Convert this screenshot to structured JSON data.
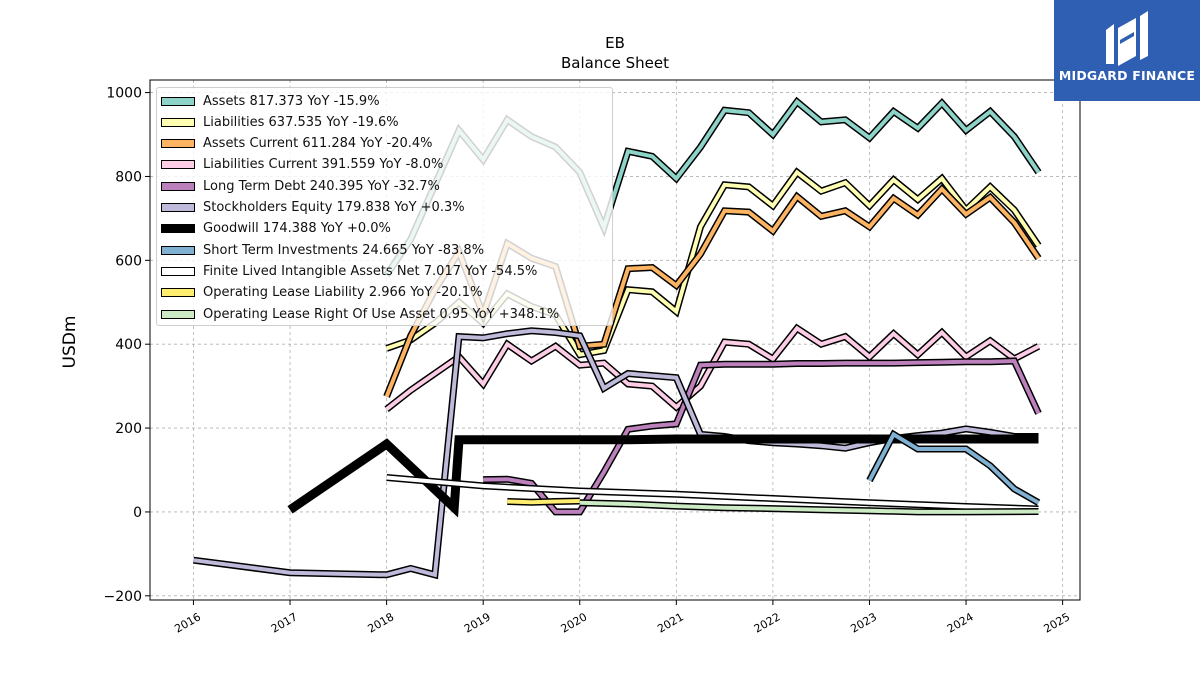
{
  "logo": {
    "text": "MIDGARD FINANCE",
    "background": "#2f5fb3"
  },
  "chart_data": {
    "type": "line",
    "title": "EB",
    "subtitle": "Balance  Sheet",
    "xlabel": "",
    "ylabel": "USDm",
    "xlim": [
      2015.55,
      2025.18
    ],
    "ylim": [
      -210,
      1030
    ],
    "x_ticks": [
      "2016",
      "2017",
      "2018",
      "2019",
      "2020",
      "2021",
      "2022",
      "2023",
      "2024",
      "2025"
    ],
    "y_ticks": [
      "−200",
      "0",
      "200",
      "400",
      "600",
      "800",
      "1000"
    ],
    "grid": true,
    "legend_position": "top-left",
    "series": [
      {
        "name": "Assets  817.373 YoY -15.9%",
        "color": "#8dd3c7",
        "points": [
          [
            2018.0,
            565
          ],
          [
            2018.25,
            650
          ],
          [
            2018.5,
            780
          ],
          [
            2018.75,
            910
          ],
          [
            2019.0,
            840
          ],
          [
            2019.25,
            935
          ],
          [
            2019.5,
            895
          ],
          [
            2019.75,
            870
          ],
          [
            2020.0,
            810
          ],
          [
            2020.25,
            678
          ],
          [
            2020.5,
            860
          ],
          [
            2020.75,
            848
          ],
          [
            2021.0,
            795
          ],
          [
            2021.25,
            870
          ],
          [
            2021.5,
            958
          ],
          [
            2021.75,
            952
          ],
          [
            2022.0,
            900
          ],
          [
            2022.25,
            978
          ],
          [
            2022.5,
            930
          ],
          [
            2022.75,
            935
          ],
          [
            2023.0,
            892
          ],
          [
            2023.25,
            955
          ],
          [
            2023.5,
            915
          ],
          [
            2023.75,
            975
          ],
          [
            2024.0,
            910
          ],
          [
            2024.25,
            955
          ],
          [
            2024.5,
            895
          ],
          [
            2024.75,
            810
          ]
        ]
      },
      {
        "name": "Liabilities  637.535 YoY -19.6%",
        "color": "#ffffb3",
        "points": [
          [
            2018.0,
            390
          ],
          [
            2018.25,
            410
          ],
          [
            2018.5,
            450
          ],
          [
            2018.75,
            500
          ],
          [
            2019.0,
            450
          ],
          [
            2019.25,
            520
          ],
          [
            2019.5,
            490
          ],
          [
            2019.75,
            470
          ],
          [
            2020.0,
            375
          ],
          [
            2020.25,
            385
          ],
          [
            2020.5,
            530
          ],
          [
            2020.75,
            525
          ],
          [
            2021.0,
            478
          ],
          [
            2021.25,
            680
          ],
          [
            2021.5,
            780
          ],
          [
            2021.75,
            775
          ],
          [
            2022.0,
            730
          ],
          [
            2022.25,
            810
          ],
          [
            2022.5,
            765
          ],
          [
            2022.75,
            785
          ],
          [
            2023.0,
            730
          ],
          [
            2023.25,
            792
          ],
          [
            2023.5,
            745
          ],
          [
            2023.75,
            795
          ],
          [
            2024.0,
            720
          ],
          [
            2024.25,
            775
          ],
          [
            2024.5,
            720
          ],
          [
            2024.75,
            635
          ]
        ]
      },
      {
        "name": "Assets Current  611.284 YoY -20.4%",
        "color": "#fdb462",
        "points": [
          [
            2018.0,
            275
          ],
          [
            2018.25,
            420
          ],
          [
            2018.5,
            530
          ],
          [
            2018.75,
            620
          ],
          [
            2019.0,
            470
          ],
          [
            2019.25,
            640
          ],
          [
            2019.5,
            605
          ],
          [
            2019.75,
            585
          ],
          [
            2020.0,
            395
          ],
          [
            2020.25,
            400
          ],
          [
            2020.5,
            580
          ],
          [
            2020.75,
            583
          ],
          [
            2021.0,
            540
          ],
          [
            2021.25,
            615
          ],
          [
            2021.5,
            718
          ],
          [
            2021.75,
            715
          ],
          [
            2022.0,
            670
          ],
          [
            2022.25,
            752
          ],
          [
            2022.5,
            705
          ],
          [
            2022.75,
            718
          ],
          [
            2023.0,
            680
          ],
          [
            2023.25,
            748
          ],
          [
            2023.5,
            708
          ],
          [
            2023.75,
            770
          ],
          [
            2024.0,
            710
          ],
          [
            2024.25,
            750
          ],
          [
            2024.5,
            690
          ],
          [
            2024.75,
            605
          ]
        ]
      },
      {
        "name": "Liabilities Current  391.559 YoY -8.0%",
        "color": "#fccde5",
        "points": [
          [
            2018.0,
            245
          ],
          [
            2018.25,
            290
          ],
          [
            2018.5,
            330
          ],
          [
            2018.75,
            370
          ],
          [
            2019.0,
            305
          ],
          [
            2019.25,
            400
          ],
          [
            2019.5,
            360
          ],
          [
            2019.75,
            395
          ],
          [
            2020.0,
            350
          ],
          [
            2020.25,
            355
          ],
          [
            2020.5,
            305
          ],
          [
            2020.75,
            300
          ],
          [
            2021.0,
            250
          ],
          [
            2021.25,
            300
          ],
          [
            2021.5,
            405
          ],
          [
            2021.75,
            400
          ],
          [
            2022.0,
            365
          ],
          [
            2022.25,
            438
          ],
          [
            2022.5,
            400
          ],
          [
            2022.75,
            418
          ],
          [
            2023.0,
            370
          ],
          [
            2023.25,
            425
          ],
          [
            2023.5,
            375
          ],
          [
            2023.75,
            428
          ],
          [
            2024.0,
            370
          ],
          [
            2024.25,
            408
          ],
          [
            2024.5,
            365
          ],
          [
            2024.75,
            395
          ]
        ]
      },
      {
        "name": "Long Term Debt  240.395 YoY -32.7%",
        "color": "#bc80bd",
        "points": [
          [
            2019.0,
            77
          ],
          [
            2019.25,
            78
          ],
          [
            2019.5,
            68
          ],
          [
            2019.75,
            0
          ],
          [
            2020.0,
            0
          ],
          [
            2020.25,
            95
          ],
          [
            2020.5,
            197
          ],
          [
            2020.75,
            205
          ],
          [
            2021.0,
            210
          ],
          [
            2021.25,
            350
          ],
          [
            2021.5,
            352
          ],
          [
            2021.75,
            352
          ],
          [
            2022.0,
            352
          ],
          [
            2022.25,
            354
          ],
          [
            2022.5,
            354
          ],
          [
            2022.75,
            355
          ],
          [
            2023.0,
            355
          ],
          [
            2023.25,
            355
          ],
          [
            2023.5,
            356
          ],
          [
            2023.75,
            357
          ],
          [
            2024.0,
            358
          ],
          [
            2024.25,
            358
          ],
          [
            2024.5,
            360
          ],
          [
            2024.75,
            235
          ]
        ]
      },
      {
        "name": "Stockholders Equity  179.838 YoY +0.3%",
        "color": "#bebada",
        "points": [
          [
            2016.0,
            -115
          ],
          [
            2017.0,
            -145
          ],
          [
            2018.0,
            -150
          ],
          [
            2018.25,
            -135
          ],
          [
            2018.5,
            -150
          ],
          [
            2018.75,
            418
          ],
          [
            2019.0,
            415
          ],
          [
            2019.25,
            425
          ],
          [
            2019.5,
            432
          ],
          [
            2019.75,
            428
          ],
          [
            2020.0,
            420
          ],
          [
            2020.25,
            295
          ],
          [
            2020.5,
            330
          ],
          [
            2020.75,
            325
          ],
          [
            2021.0,
            320
          ],
          [
            2021.25,
            185
          ],
          [
            2021.5,
            180
          ],
          [
            2021.75,
            170
          ],
          [
            2022.0,
            165
          ],
          [
            2022.25,
            162
          ],
          [
            2022.5,
            158
          ],
          [
            2022.75,
            152
          ],
          [
            2023.0,
            165
          ],
          [
            2023.25,
            175
          ],
          [
            2023.5,
            182
          ],
          [
            2023.75,
            188
          ],
          [
            2024.0,
            198
          ],
          [
            2024.25,
            190
          ],
          [
            2024.5,
            180
          ],
          [
            2024.75,
            180
          ]
        ]
      },
      {
        "name": "Goodwill  174.388 YoY +0.0%",
        "color": "#000000",
        "points": [
          [
            2017.0,
            5
          ],
          [
            2018.0,
            162
          ],
          [
            2018.7,
            10
          ],
          [
            2018.75,
            172
          ],
          [
            2019.0,
            172
          ],
          [
            2019.5,
            172
          ],
          [
            2020.0,
            172
          ],
          [
            2020.5,
            172
          ],
          [
            2021.0,
            174
          ],
          [
            2021.5,
            174
          ],
          [
            2022.0,
            174
          ],
          [
            2022.5,
            174
          ],
          [
            2023.0,
            174
          ],
          [
            2023.5,
            174
          ],
          [
            2024.0,
            174
          ],
          [
            2024.75,
            174
          ]
        ]
      },
      {
        "name": "Short Term Investments  24.665 YoY -83.8%",
        "color": "#80b1d3",
        "points": [
          [
            2023.0,
            75
          ],
          [
            2023.25,
            185
          ],
          [
            2023.5,
            150
          ],
          [
            2023.75,
            150
          ],
          [
            2024.0,
            150
          ],
          [
            2024.25,
            110
          ],
          [
            2024.5,
            55
          ],
          [
            2024.75,
            22
          ]
        ]
      },
      {
        "name": "Finite Lived Intangible Assets Net  7.017 YoY -54.5%",
        "color": "#ffffff",
        "points": [
          [
            2018.0,
            82
          ],
          [
            2019.0,
            62
          ],
          [
            2020.0,
            50
          ],
          [
            2021.0,
            42
          ],
          [
            2022.0,
            32
          ],
          [
            2023.0,
            22
          ],
          [
            2024.0,
            13
          ],
          [
            2024.75,
            7
          ]
        ]
      },
      {
        "name": "Operating Lease Liability  2.966 YoY -20.1%",
        "color": "#ffed6f",
        "points": [
          [
            2019.25,
            25
          ],
          [
            2019.5,
            23
          ],
          [
            2019.75,
            25
          ],
          [
            2020.0,
            26
          ]
        ]
      },
      {
        "name": "Operating Lease Right Of Use Asset  0.95 YoY +348.1%",
        "color": "#ccebc5",
        "points": [
          [
            2020.0,
            22
          ],
          [
            2020.5,
            19
          ],
          [
            2021.0,
            14
          ],
          [
            2021.5,
            10
          ],
          [
            2022.0,
            8
          ],
          [
            2022.5,
            5
          ],
          [
            2023.0,
            3
          ],
          [
            2023.5,
            0
          ],
          [
            2024.0,
            0
          ],
          [
            2024.75,
            1
          ]
        ]
      }
    ]
  }
}
